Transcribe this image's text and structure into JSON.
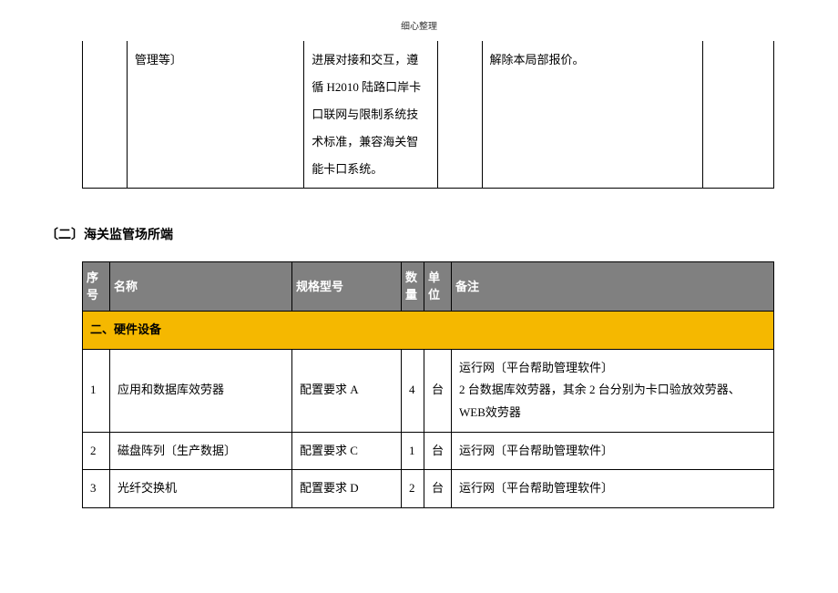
{
  "page_header": "细心整理",
  "table1": {
    "row": {
      "col2": "管理等〕",
      "col3": "进展对接和交互，遵循 H2010 陆路口岸卡口联网与限制系统技术标准，兼容海关智能卡口系统。",
      "col5": "解除本局部报价。"
    }
  },
  "section_title": "〔二〕海关监管场所端",
  "table2": {
    "headers": {
      "seq": "序号",
      "name": "名称",
      "spec": "规格型号",
      "qty": "数量",
      "unit": "单位",
      "remark": "备注"
    },
    "category": "二、硬件设备",
    "rows": [
      {
        "seq": "1",
        "name": "应用和数据库效劳器",
        "spec": "配置要求 A",
        "qty": "4",
        "unit": "台",
        "remark": "运行网〔平台帮助管理软件〕\n2 台数据库效劳器，其余 2 台分别为卡口验放效劳器、WEB效劳器"
      },
      {
        "seq": "2",
        "name": "磁盘阵列〔生产数据〕",
        "spec": "配置要求 C",
        "qty": "1",
        "unit": "台",
        "remark": "运行网〔平台帮助管理软件〕"
      },
      {
        "seq": "3",
        "name": "光纤交换机",
        "spec": "配置要求 D",
        "qty": "2",
        "unit": "台",
        "remark": "运行网〔平台帮助管理软件〕"
      }
    ]
  },
  "colors": {
    "header_bg": "#808080",
    "header_text": "#ffffff",
    "category_bg": "#f5b800",
    "border": "#000000"
  }
}
